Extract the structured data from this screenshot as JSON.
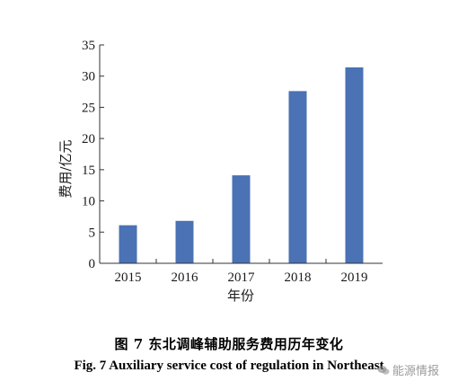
{
  "chart_data": {
    "type": "bar",
    "categories": [
      "2015",
      "2016",
      "2017",
      "2018",
      "2019"
    ],
    "values": [
      6.1,
      6.8,
      14.1,
      27.6,
      31.4
    ],
    "xlabel": "年份",
    "ylabel": "费用/亿元",
    "ylim": [
      0,
      35
    ],
    "yticks": [
      0,
      5,
      10,
      15,
      20,
      25,
      30,
      35
    ],
    "bar_color": "#4a72b4",
    "grid": false
  },
  "caption": {
    "cn": "图 7    东北调峰辅助服务费用历年变化",
    "en": "Fig. 7    Auxiliary service cost of regulation in Northeast"
  },
  "watermark": {
    "text": "能源情报",
    "icon": "wechat-icon"
  }
}
